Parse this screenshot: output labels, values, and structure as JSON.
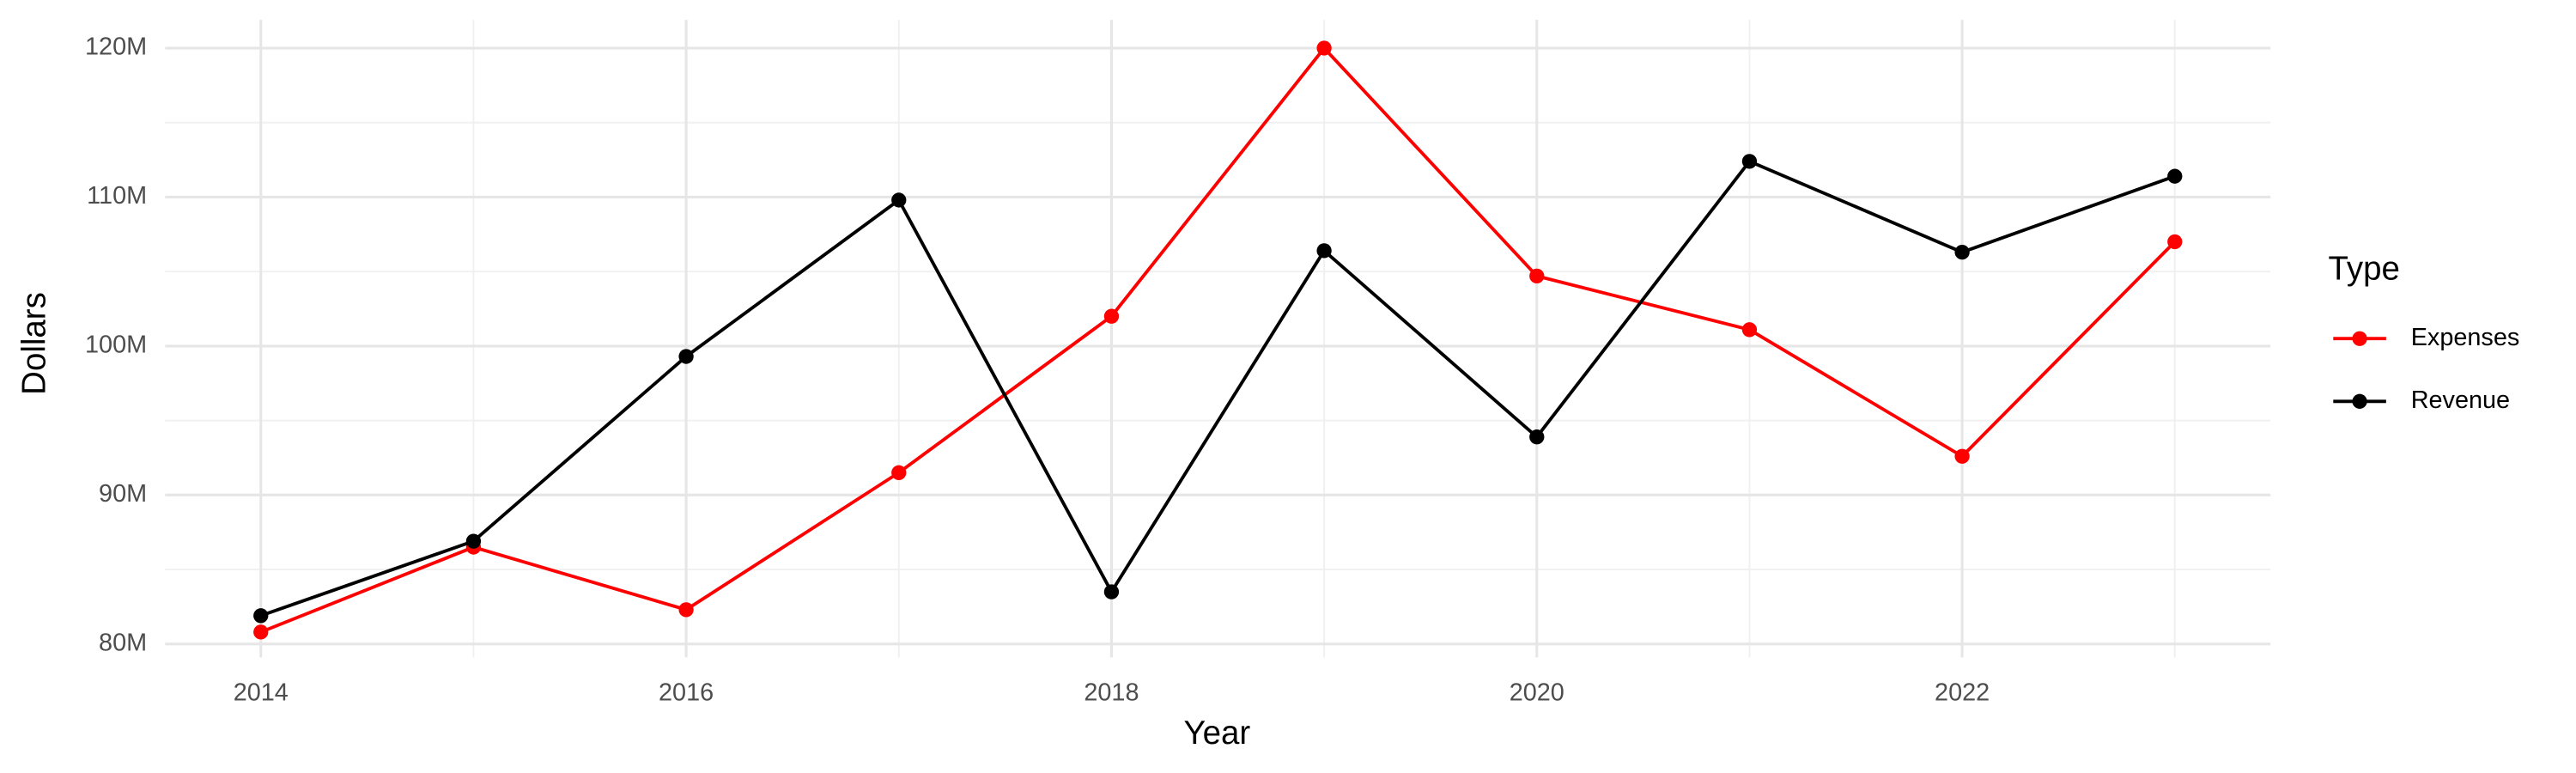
{
  "chart_data": {
    "type": "line",
    "x_label": "Year",
    "y_label": "Dollars",
    "x": [
      2014,
      2015,
      2016,
      2017,
      2018,
      2019,
      2020,
      2021,
      2022,
      2023
    ],
    "series": [
      {
        "name": "Expenses",
        "color": "#ff0000",
        "values": [
          80800000,
          86500000,
          82300000,
          91500000,
          102000000,
          120000000,
          104700000,
          101100000,
          92600000,
          107000000
        ]
      },
      {
        "name": "Revenue",
        "color": "#000000",
        "values": [
          81900000,
          86900000,
          99300000,
          109800000,
          83500000,
          106400000,
          93900000,
          112400000,
          106300000,
          111400000
        ]
      }
    ],
    "xlim": [
      2013.55,
      2023.45
    ],
    "ylim": [
      79100000,
      121900000
    ],
    "xticks": [
      2014,
      2016,
      2018,
      2020,
      2022
    ],
    "yticks": [
      {
        "value": 80000000,
        "label": "80M"
      },
      {
        "value": 90000000,
        "label": "90M"
      },
      {
        "value": 100000000,
        "label": "100M"
      },
      {
        "value": 110000000,
        "label": "110M"
      },
      {
        "value": 120000000,
        "label": "120M"
      }
    ],
    "x_minor_grid": [
      2015,
      2017,
      2019,
      2021,
      2023
    ],
    "y_minor_grid": [
      85000000,
      95000000,
      105000000,
      115000000
    ],
    "grid": true,
    "legend_title": "Type",
    "legend_position": "right"
  }
}
